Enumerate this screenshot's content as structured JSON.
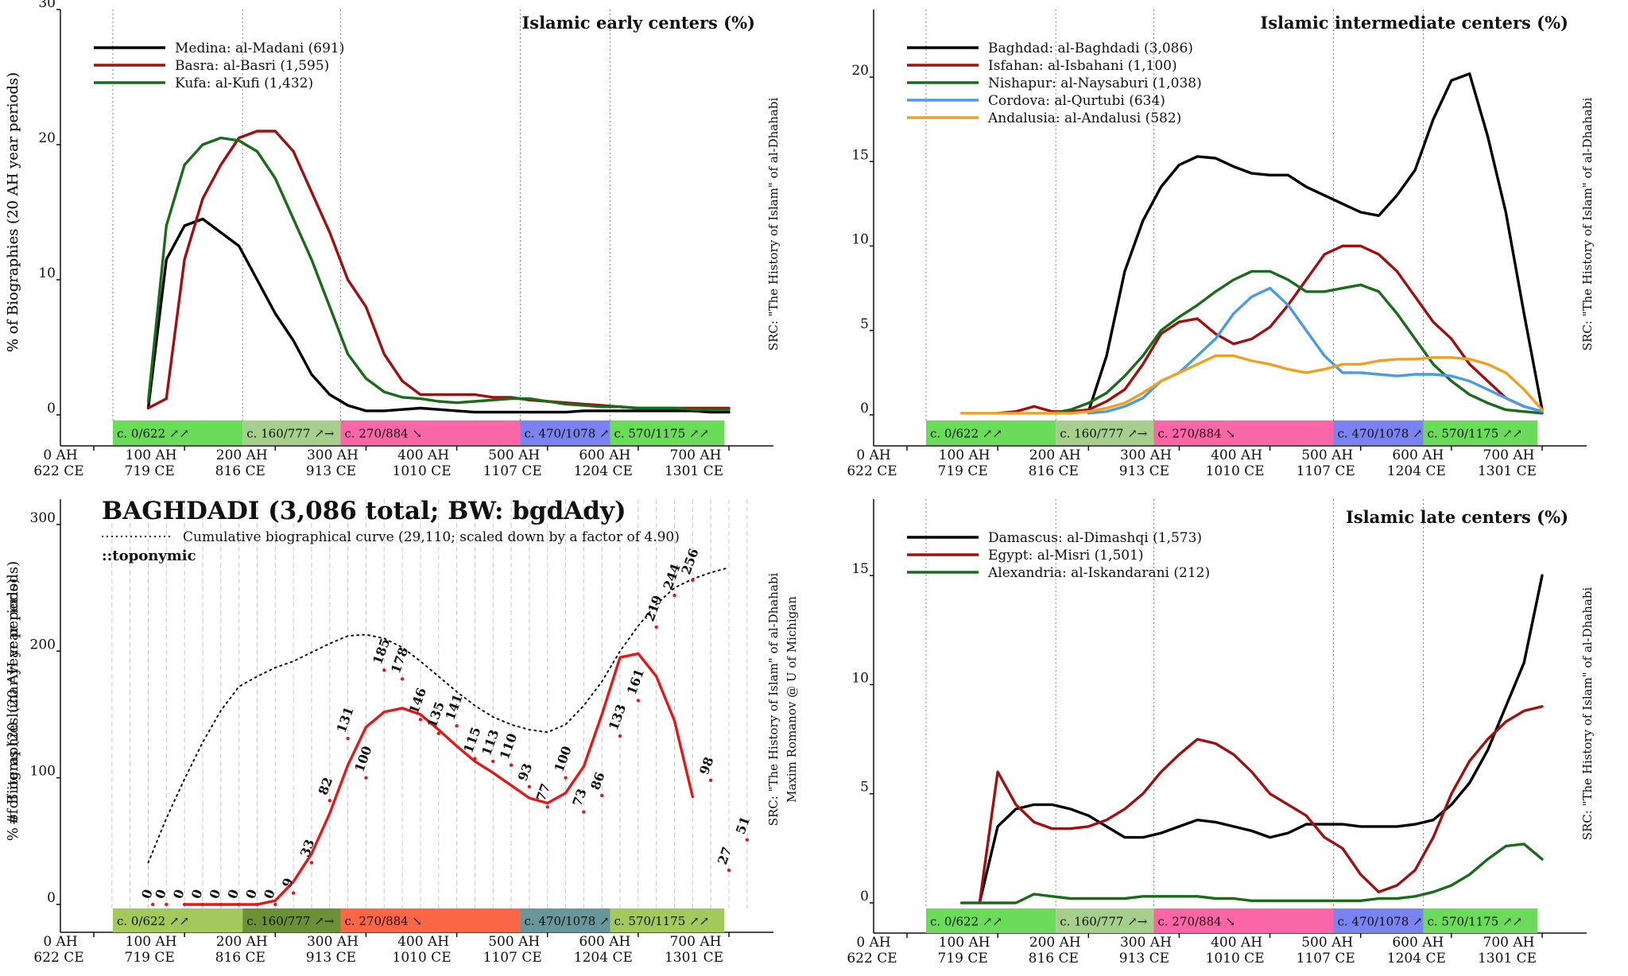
{
  "axis_ticks": {
    "ah": [
      "0 AH",
      "100 AH",
      "200 AH",
      "300 AH",
      "400 AH",
      "500 AH",
      "600 AH",
      "700 AH"
    ],
    "ce": [
      "622 CE",
      "719 CE",
      "816 CE",
      "913 CE",
      "1010 CE",
      "1107 CE",
      "1204 CE",
      "1301 CE"
    ]
  },
  "src_label": "SRC: \"The History of Islam\" of al-Dhahabi",
  "author_label": "Maxim Romanov @ U of Michigan",
  "bands_std": [
    {
      "label": "c. 0/622 ↗↗",
      "color": "#6bdc5a",
      "start": 21,
      "end": 164
    },
    {
      "label": "c. 160/777 ↗→",
      "color": "#a6cf8d",
      "start": 164,
      "end": 272
    },
    {
      "label": "c. 270/884 ↘",
      "color": "#fb66a6",
      "start": 272,
      "end": 470
    },
    {
      "label": "c. 470/1078 ↗",
      "color": "#7b83f0",
      "start": 470,
      "end": 569
    },
    {
      "label": "c. 570/1175 ↗↗",
      "color": "#6bdc5a",
      "start": 569,
      "end": 695
    }
  ],
  "bands_bgd": [
    {
      "label": "c. 0/622 ↗↗",
      "color": "#a3c85c",
      "start": 21,
      "end": 164
    },
    {
      "label": "c. 160/777 ↗→",
      "color": "#6a9135",
      "start": 164,
      "end": 272
    },
    {
      "label": "c. 270/884 ↘",
      "color": "#fb6746",
      "start": 272,
      "end": 470
    },
    {
      "label": "c. 470/1078 ↗",
      "color": "#67969b",
      "start": 470,
      "end": 569
    },
    {
      "label": "c. 570/1175 ↗↗",
      "color": "#a3c85c",
      "start": 569,
      "end": 695
    }
  ],
  "chart_data": [
    {
      "type": "line",
      "title": "Islamic early centers (%)",
      "ylabel": "% of Biographies (20 AH year periods)",
      "ylim": [
        0,
        30
      ],
      "yticks": [
        0,
        10,
        20,
        30
      ],
      "x": [
        60,
        80,
        100,
        120,
        140,
        160,
        180,
        200,
        220,
        240,
        260,
        280,
        300,
        320,
        340,
        360,
        380,
        400,
        420,
        440,
        460,
        480,
        500,
        520,
        540,
        560,
        580,
        600,
        620,
        640,
        660,
        680,
        700
      ],
      "series": [
        {
          "name": "Medina: al-Madani (691)",
          "color": "#000000",
          "values": [
            0.5,
            11.5,
            14.0,
            14.5,
            13.5,
            12.5,
            10.0,
            7.5,
            5.5,
            3.0,
            1.5,
            0.7,
            0.3,
            0.3,
            0.4,
            0.5,
            0.4,
            0.3,
            0.2,
            0.2,
            0.2,
            0.2,
            0.2,
            0.2,
            0.3,
            0.3,
            0.3,
            0.3,
            0.3,
            0.3,
            0.3,
            0.2,
            0.2
          ]
        },
        {
          "name": "Basra: al-Basri (1,595)",
          "color": "#a01010",
          "values": [
            0.5,
            1.2,
            11.5,
            16.0,
            18.5,
            20.5,
            21.0,
            21.0,
            19.5,
            16.5,
            13.5,
            10.0,
            8.0,
            4.5,
            2.5,
            1.5,
            1.5,
            1.5,
            1.5,
            1.3,
            1.3,
            1.1,
            1.0,
            0.9,
            0.8,
            0.7,
            0.6,
            0.5,
            0.5,
            0.5,
            0.5,
            0.5,
            0.5
          ]
        },
        {
          "name": "Kufa: al-Kufi (1,432)",
          "color": "#1a6b1a",
          "values": [
            1.0,
            14.0,
            18.5,
            20.0,
            20.5,
            20.3,
            19.5,
            17.5,
            14.5,
            11.5,
            8.0,
            4.5,
            2.7,
            1.7,
            1.3,
            1.2,
            1.0,
            0.9,
            1.0,
            1.1,
            1.2,
            1.2,
            1.0,
            0.8,
            0.7,
            0.6,
            0.6,
            0.5,
            0.5,
            0.5,
            0.4,
            0.4,
            0.4
          ]
        }
      ],
      "legend": "top-left"
    },
    {
      "type": "line",
      "title": "Islamic intermediate centers (%)",
      "ylabel": "% of Biographies (20 AH year periods)",
      "ylim": [
        0,
        24
      ],
      "yticks": [
        0,
        5,
        10,
        15,
        20
      ],
      "x": [
        60,
        80,
        100,
        120,
        140,
        160,
        180,
        200,
        220,
        240,
        260,
        280,
        300,
        320,
        340,
        360,
        380,
        400,
        420,
        440,
        460,
        480,
        500,
        520,
        540,
        560,
        580,
        600,
        620,
        640,
        660,
        680,
        700
      ],
      "series": [
        {
          "name": "Baghdad: al-Baghdadi (3,086)",
          "color": "#000000",
          "values": [
            null,
            null,
            null,
            null,
            null,
            null,
            null,
            0.2,
            3.5,
            8.5,
            11.5,
            13.5,
            14.8,
            15.3,
            15.2,
            14.7,
            14.3,
            14.2,
            14.2,
            13.5,
            13.0,
            12.5,
            12.0,
            11.8,
            13.0,
            14.5,
            17.5,
            19.8,
            20.2,
            16.5,
            12.0,
            6.0,
            0.3
          ]
        },
        {
          "name": "Isfahan: al-Isbahani (1,100)",
          "color": "#a01010",
          "values": [
            null,
            null,
            0.1,
            0.2,
            0.5,
            0.2,
            0.2,
            0.3,
            0.8,
            1.5,
            3.0,
            4.8,
            5.5,
            5.7,
            4.8,
            4.2,
            4.5,
            5.2,
            6.5,
            8.0,
            9.5,
            10.0,
            10.0,
            9.5,
            8.5,
            7.0,
            5.5,
            4.5,
            3.0,
            2.0,
            1.0,
            0.5,
            0.2
          ]
        },
        {
          "name": "Nishapur: al-Naysaburi (1,038)",
          "color": "#1a6b1a",
          "values": [
            null,
            null,
            null,
            null,
            null,
            0.1,
            0.3,
            0.7,
            1.3,
            2.3,
            3.5,
            5.0,
            5.8,
            6.5,
            7.3,
            8.0,
            8.5,
            8.5,
            8.0,
            7.3,
            7.3,
            7.5,
            7.7,
            7.3,
            6.0,
            4.5,
            3.0,
            2.0,
            1.2,
            0.7,
            0.3,
            0.2,
            0.1
          ]
        },
        {
          "name": "Cordova: al-Qurtubi (634)",
          "color": "#4a9be0",
          "values": [
            null,
            null,
            null,
            null,
            null,
            null,
            null,
            0.1,
            0.2,
            0.5,
            1.0,
            2.0,
            2.5,
            3.5,
            4.5,
            6.0,
            7.0,
            7.5,
            6.5,
            5.0,
            3.5,
            2.5,
            2.5,
            2.4,
            2.3,
            2.4,
            2.4,
            2.3,
            2.0,
            1.5,
            1.0,
            0.5,
            0.2
          ]
        },
        {
          "name": "Andalusia: al-Andalusi (582)",
          "color": "#f0a020",
          "values": [
            0.1,
            0.1,
            0.1,
            0.1,
            0.1,
            0.1,
            0.1,
            0.2,
            0.4,
            0.7,
            1.3,
            2.0,
            2.5,
            3.0,
            3.5,
            3.5,
            3.2,
            3.0,
            2.7,
            2.5,
            2.7,
            3.0,
            3.0,
            3.2,
            3.3,
            3.3,
            3.4,
            3.4,
            3.3,
            3.0,
            2.5,
            1.5,
            0.3
          ]
        }
      ],
      "legend": "top-left"
    },
    {
      "type": "line",
      "title": "BAGHDADI (3,086 total; BW: bgdAdy)",
      "subtitle": "::toponymic",
      "ylabel": "# of items (20 lunar year periods)",
      "ylim": [
        0,
        320
      ],
      "yticks": [
        0,
        100,
        200,
        300
      ],
      "x": [
        60,
        80,
        100,
        120,
        140,
        160,
        180,
        200,
        220,
        240,
        260,
        280,
        300,
        320,
        340,
        360,
        380,
        400,
        420,
        440,
        460,
        480,
        500,
        520,
        540,
        560,
        580,
        600,
        620,
        640,
        660,
        680,
        700
      ],
      "series": [
        {
          "name": "Cumulative biographical curve (29,110; scaled down by a factor of 4.90)",
          "color": "#111111",
          "dashed": true,
          "values": [
            33,
            68,
            99,
            128,
            153,
            172,
            180,
            187,
            192,
            199,
            206,
            212,
            213,
            210,
            203,
            192,
            180,
            168,
            157,
            148,
            142,
            138,
            136,
            142,
            157,
            176,
            200,
            220,
            237,
            250,
            257,
            262,
            266
          ]
        },
        {
          "name": "Baghdadi",
          "color": "#e01a1a",
          "values": [
            null,
            null,
            0,
            0,
            0,
            0,
            0,
            3,
            18,
            40,
            72,
            110,
            140,
            152,
            155,
            150,
            138,
            125,
            113,
            104,
            94,
            84,
            80,
            88,
            109,
            150,
            195,
            198,
            180,
            145,
            85,
            null,
            null
          ]
        }
      ],
      "point_labels": [
        {
          "x": 65,
          "v": 0
        },
        {
          "x": 80,
          "v": 0
        },
        {
          "x": 100,
          "v": 0
        },
        {
          "x": 120,
          "v": 0
        },
        {
          "x": 140,
          "v": 0
        },
        {
          "x": 160,
          "v": 0
        },
        {
          "x": 180,
          "v": 0
        },
        {
          "x": 200,
          "v": 0
        },
        {
          "x": 220,
          "v": 9
        },
        {
          "x": 240,
          "v": 33
        },
        {
          "x": 260,
          "v": 82
        },
        {
          "x": 280,
          "v": 131
        },
        {
          "x": 300,
          "v": 100
        },
        {
          "x": 320,
          "v": 185
        },
        {
          "x": 340,
          "v": 178
        },
        {
          "x": 360,
          "v": 146
        },
        {
          "x": 380,
          "v": 135
        },
        {
          "x": 400,
          "v": 141
        },
        {
          "x": 420,
          "v": 115
        },
        {
          "x": 440,
          "v": 113
        },
        {
          "x": 460,
          "v": 110
        },
        {
          "x": 480,
          "v": 93
        },
        {
          "x": 500,
          "v": 77
        },
        {
          "x": 520,
          "v": 100
        },
        {
          "x": 540,
          "v": 73
        },
        {
          "x": 560,
          "v": 86
        },
        {
          "x": 580,
          "v": 133
        },
        {
          "x": 600,
          "v": 161
        },
        {
          "x": 620,
          "v": 219
        },
        {
          "x": 640,
          "v": 244
        },
        {
          "x": 660,
          "v": 256
        },
        {
          "x": 680,
          "v": 98
        },
        {
          "x": 700,
          "v": 27
        },
        {
          "x": 720,
          "v": 51
        }
      ],
      "legend": "top-left"
    },
    {
      "type": "line",
      "title": "Islamic late centers (%)",
      "ylabel": "% of Biographies (20 AH year periods)",
      "ylim": [
        0,
        18.5
      ],
      "yticks": [
        0,
        5,
        10,
        15
      ],
      "x": [
        60,
        80,
        100,
        120,
        140,
        160,
        180,
        200,
        220,
        240,
        260,
        280,
        300,
        320,
        340,
        360,
        380,
        400,
        420,
        440,
        460,
        480,
        500,
        520,
        540,
        560,
        580,
        600,
        620,
        640,
        660,
        680,
        700
      ],
      "series": [
        {
          "name": "Damascus: al-Dimashqi (1,573)",
          "color": "#000000",
          "values": [
            null,
            0.0,
            3.5,
            4.3,
            4.5,
            4.5,
            4.3,
            4.0,
            3.5,
            3.0,
            3.0,
            3.2,
            3.5,
            3.8,
            3.7,
            3.5,
            3.3,
            3.0,
            3.2,
            3.6,
            3.6,
            3.6,
            3.5,
            3.5,
            3.5,
            3.6,
            3.8,
            4.5,
            5.5,
            7.0,
            9.0,
            11.0,
            15.0
          ]
        },
        {
          "name": "Egypt: al-Misri (1,501)",
          "color": "#a01010",
          "values": [
            null,
            0.0,
            6.0,
            4.5,
            3.7,
            3.4,
            3.4,
            3.5,
            3.8,
            4.3,
            5.0,
            6.0,
            6.8,
            7.5,
            7.3,
            6.8,
            6.0,
            5.0,
            4.5,
            4.0,
            3.0,
            2.5,
            1.3,
            0.5,
            0.8,
            1.5,
            3.0,
            5.0,
            6.5,
            7.5,
            8.3,
            8.8,
            9.0
          ]
        },
        {
          "name": "Alexandria: al-Iskandarani (212)",
          "color": "#1a6b1a",
          "values": [
            0.0,
            0.0,
            0.0,
            0.0,
            0.4,
            0.3,
            0.2,
            0.2,
            0.2,
            0.2,
            0.3,
            0.3,
            0.3,
            0.3,
            0.2,
            0.2,
            0.1,
            0.1,
            0.1,
            0.1,
            0.1,
            0.1,
            0.1,
            0.2,
            0.2,
            0.3,
            0.5,
            0.8,
            1.3,
            2.0,
            2.6,
            2.7,
            2.0
          ]
        }
      ],
      "legend": "top-left"
    }
  ]
}
